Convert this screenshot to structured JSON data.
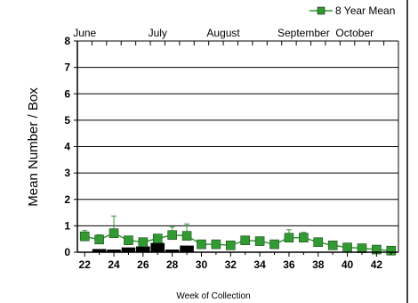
{
  "chart_data": {
    "type": "line",
    "xlabel": "Week of Collection",
    "ylabel": "Mean Number / Box",
    "xlim": [
      21.5,
      43.5
    ],
    "ylim": [
      0,
      8
    ],
    "y_ticks": [
      0,
      1,
      2,
      3,
      4,
      5,
      6,
      7,
      8
    ],
    "x_ticks": [
      22,
      24,
      26,
      28,
      30,
      32,
      34,
      36,
      38,
      40,
      42
    ],
    "grid": "horizontal",
    "legend_position": "top-right",
    "month_labels": [
      {
        "label": "June",
        "week": 22
      },
      {
        "label": "July",
        "week": 27
      },
      {
        "label": "August",
        "week": 31.5
      },
      {
        "label": "September",
        "week": 37
      },
      {
        "label": "October",
        "week": 40.5
      }
    ],
    "month_ticks": [
      22.5,
      23.5,
      24.5,
      25.5,
      26.5,
      27.5,
      28.5,
      29.5,
      30.5,
      31.5,
      32.5,
      33.5,
      34.5,
      35.5,
      36.5,
      37.5,
      38.5,
      39.5,
      40.5,
      41.5,
      42.5
    ],
    "series": [
      {
        "name": "8 Year Mean",
        "color": "#339933",
        "marker": "square",
        "x": [
          22,
          23,
          24,
          25,
          26,
          27,
          28,
          29,
          30,
          31,
          32,
          33,
          34,
          35,
          36,
          37,
          38,
          39,
          40,
          41,
          42,
          43
        ],
        "values": [
          0.6,
          0.48,
          0.72,
          0.45,
          0.38,
          0.52,
          0.65,
          0.62,
          0.3,
          0.3,
          0.26,
          0.45,
          0.42,
          0.3,
          0.55,
          0.55,
          0.38,
          0.26,
          0.18,
          0.15,
          0.1,
          0.06
        ],
        "error_upper": [
          0.22,
          0.18,
          0.65,
          0.12,
          0.12,
          0.15,
          0.3,
          0.45,
          0.08,
          0.1,
          0.05,
          0.1,
          0.12,
          0.05,
          0.3,
          0.2,
          0.08,
          0.05,
          0.05,
          0.05,
          0.03,
          0.02
        ]
      }
    ],
    "bars": {
      "color": "#000000",
      "x": [
        23,
        24,
        25,
        26,
        27,
        28,
        29
      ],
      "values": [
        0.12,
        0.1,
        0.18,
        0.22,
        0.35,
        0.1,
        0.25
      ]
    }
  }
}
